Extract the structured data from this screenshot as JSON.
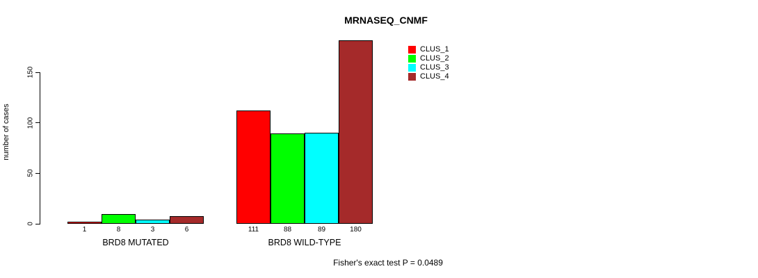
{
  "chart_data": {
    "type": "bar",
    "title": "MRNASEQ_CNMF",
    "ylabel": "number of cases",
    "xlabel": "",
    "yticks": [
      0,
      50,
      100,
      150
    ],
    "ylim": [
      0,
      180
    ],
    "grid": false,
    "legend_position": "top-right",
    "categories": [
      "BRD8 MUTATED",
      "BRD8 WILD-TYPE"
    ],
    "groups": [
      {
        "label": "BRD8 MUTATED",
        "values": [
          1,
          8,
          3,
          6
        ]
      },
      {
        "label": "BRD8 WILD-TYPE",
        "values": [
          111,
          88,
          89,
          180
        ]
      }
    ],
    "series": [
      {
        "name": "CLUS_1",
        "color": "#FF0000"
      },
      {
        "name": "CLUS_2",
        "color": "#00FF00"
      },
      {
        "name": "CLUS_3",
        "color": "#00FFFF"
      },
      {
        "name": "CLUS_4",
        "color": "#A52A2A"
      }
    ],
    "bar_border_color": "#000000",
    "caption": "Fisher's exact test P = 0.0489"
  }
}
